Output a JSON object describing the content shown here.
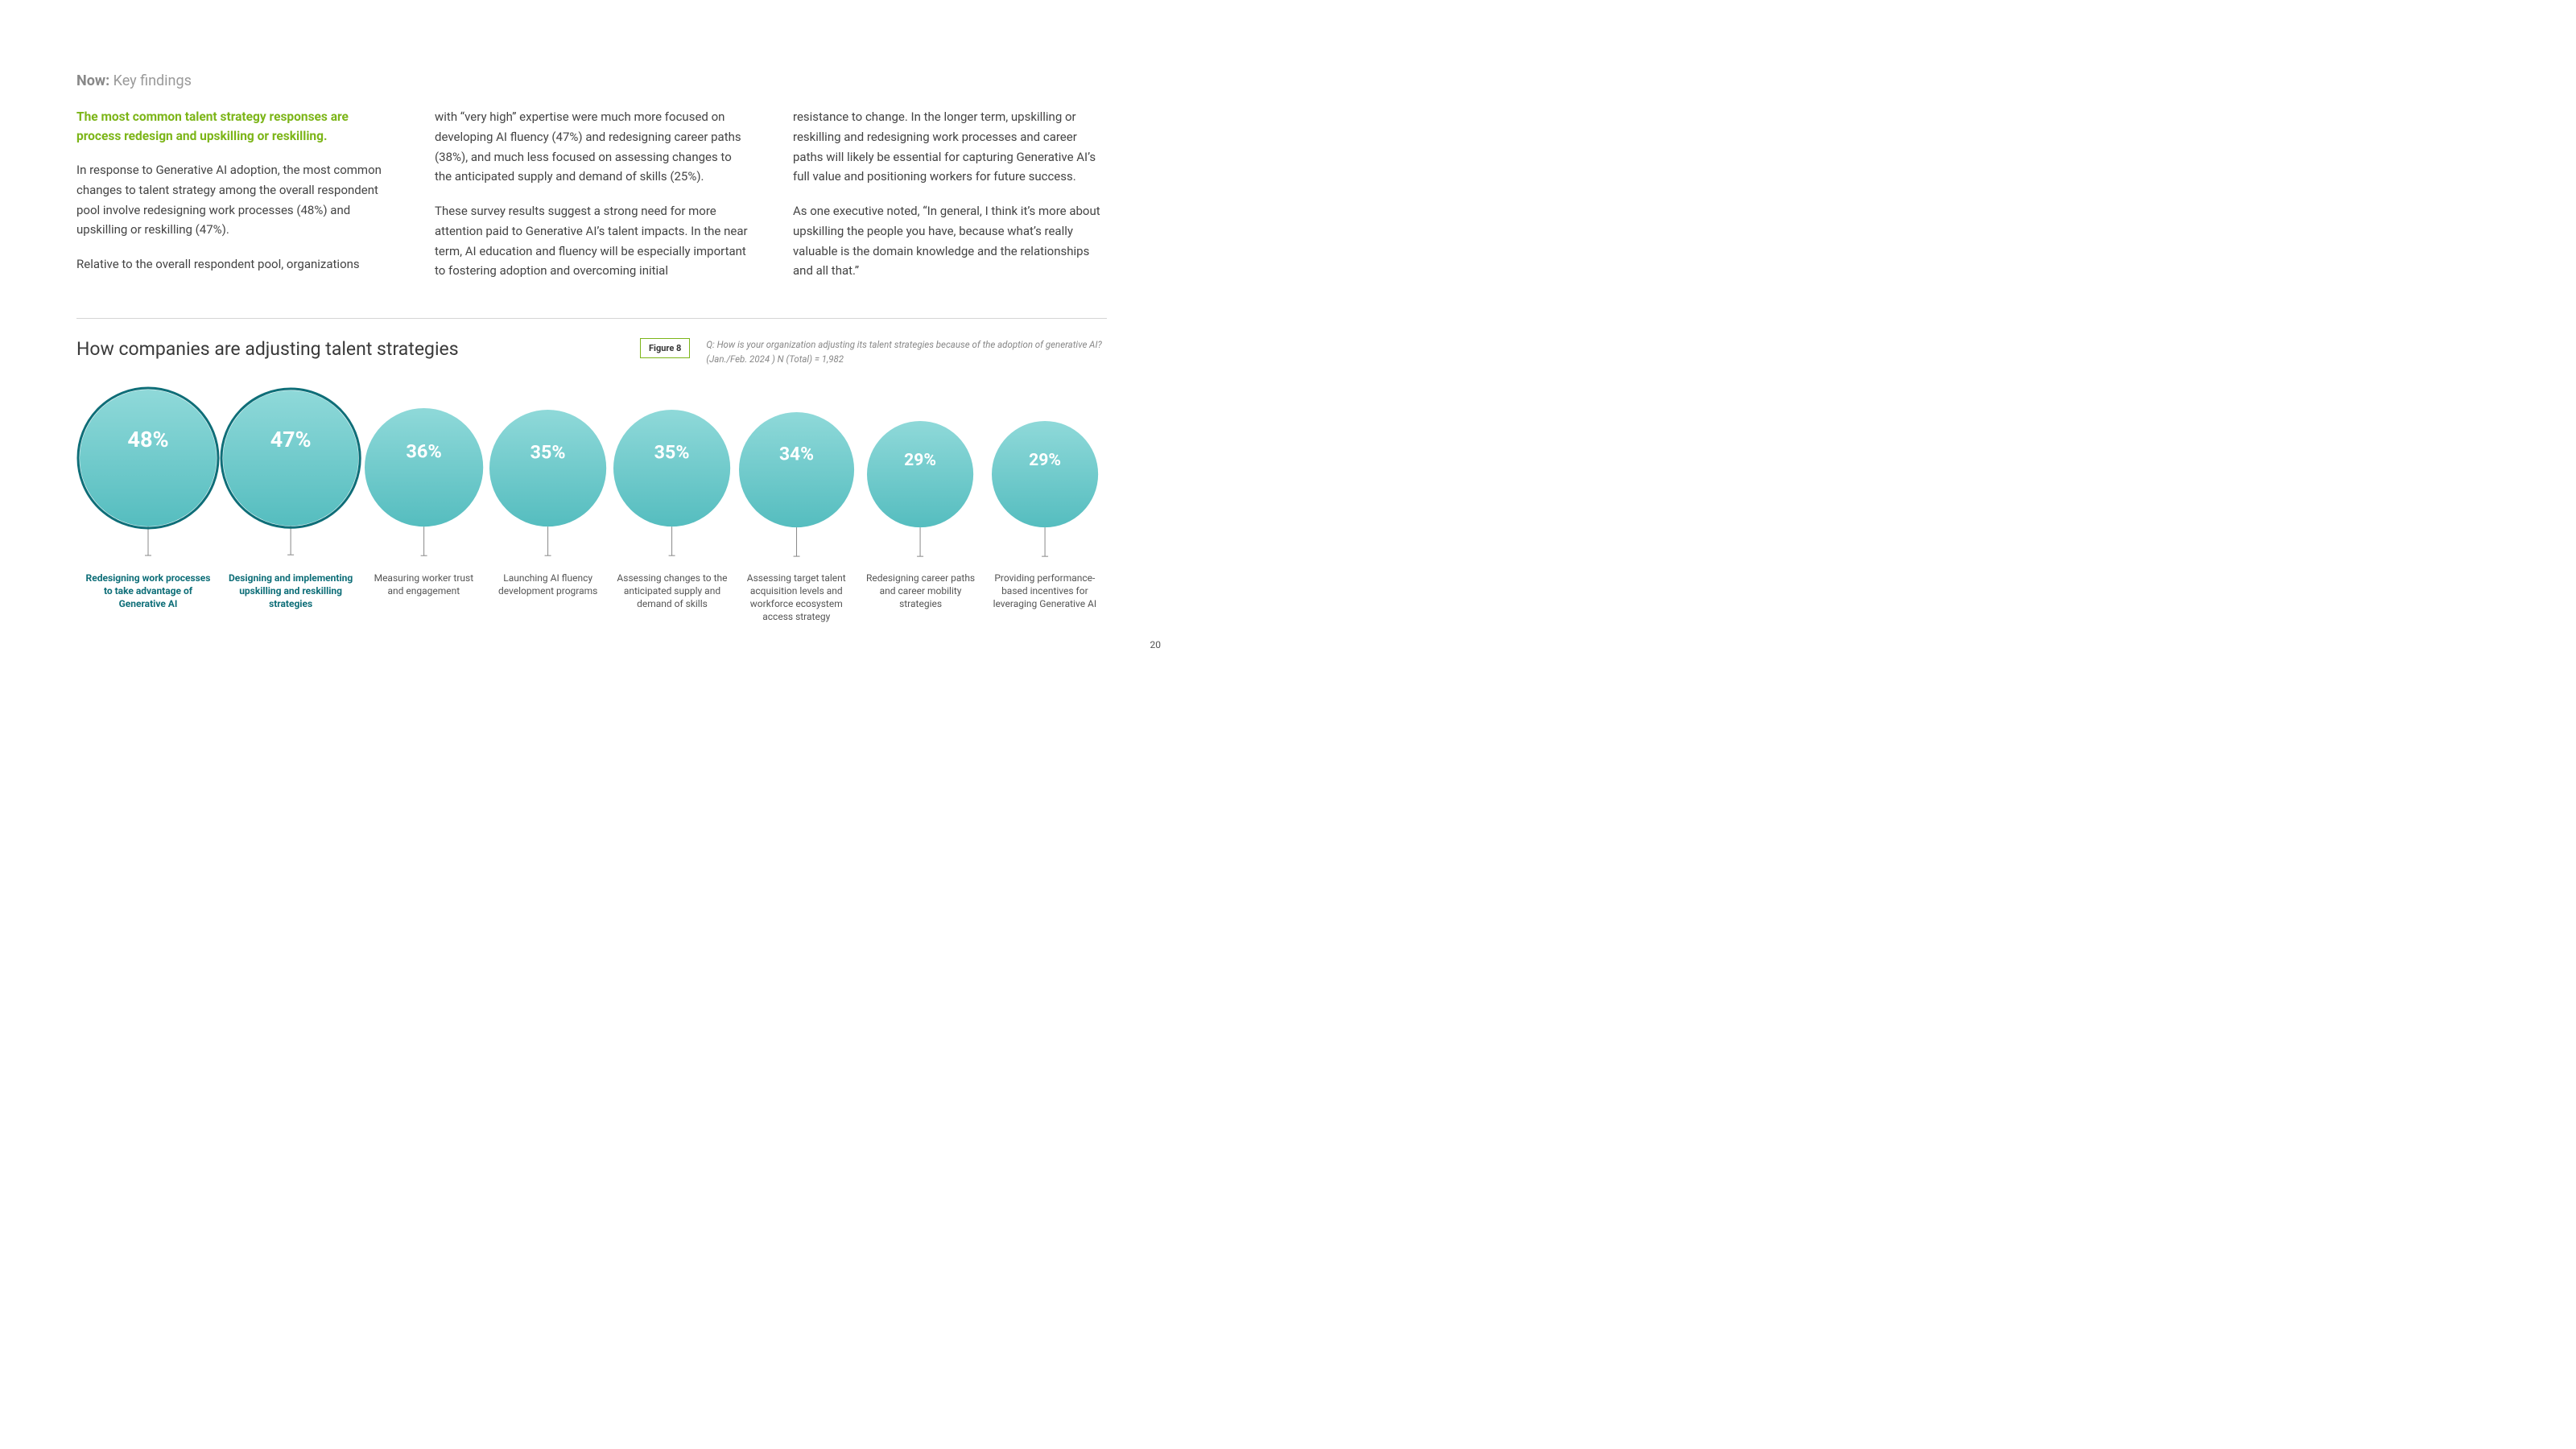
{
  "header": {
    "prefix": "Now:",
    "suffix": "Key findings"
  },
  "lead": "The most common talent strategy responses are process redesign and upskilling or reskilling.",
  "col1": {
    "p1": "In response to Generative AI adoption, the most common changes to talent strategy among the overall respondent pool involve redesigning work processes (48%) and upskilling or reskilling (47%).",
    "p2": "Relative to the overall respondent pool, organizations"
  },
  "col2": {
    "p1": "with “very high” expertise were much more focused on developing AI fluency (47%) and redesigning career paths (38%), and much less focused on assessing changes to the anticipated supply and demand of skills (25%).",
    "p2": "These survey results suggest a strong need for more attention paid to Generative AI’s talent impacts. In the near term, AI education and fluency will be especially important to fostering adoption and overcoming initial"
  },
  "col3": {
    "p1": "resistance to change. In the longer term, upskilling or reskilling and redesigning work processes and career paths will likely be essential for capturing Generative AI’s full value and positioning workers for future success.",
    "p2": "As one executive noted, “In general, I think it’s more about upskilling the people you have, because what’s really valuable is the domain knowledge and the relationships and all that.”"
  },
  "chart": {
    "title": "How companies are adjusting talent strategies",
    "figure_label": "Figure 8",
    "note": "Q: How is your organization adjusting its talent strategies because of the adoption of generative AI? (Jan./Feb. 2024 ) N (Total) = 1,982",
    "fill_top": "#8fd9d9",
    "fill_bottom": "#55bdbf",
    "ring_color": "#0e6e78",
    "stem_color": "#888888",
    "text_color": "#ffffff",
    "max_diameter": 170,
    "stem_len": 36,
    "bubbles": [
      {
        "value": 48,
        "pct": "48%",
        "label": "Redesigning work processes to take advantage of Generative AI",
        "highlight": true
      },
      {
        "value": 47,
        "pct": "47%",
        "label": "Designing and implementing upskilling and reskilling strategies",
        "highlight": true
      },
      {
        "value": 36,
        "pct": "36%",
        "label": "Measuring worker trust and engagement",
        "highlight": false
      },
      {
        "value": 35,
        "pct": "35%",
        "label": "Launching AI fluency development programs",
        "highlight": false
      },
      {
        "value": 35,
        "pct": "35%",
        "label": "Assessing changes to the anticipated supply and demand of skills",
        "highlight": false
      },
      {
        "value": 34,
        "pct": "34%",
        "label": "Assessing target talent acquisition levels and workforce ecosystem access strategy",
        "highlight": false
      },
      {
        "value": 29,
        "pct": "29%",
        "label": "Redesigning career paths and career mobility strategies",
        "highlight": false
      },
      {
        "value": 29,
        "pct": "29%",
        "label": "Providing performance-based incentives for leveraging Generative AI",
        "highlight": false
      }
    ]
  },
  "page_number": "20"
}
